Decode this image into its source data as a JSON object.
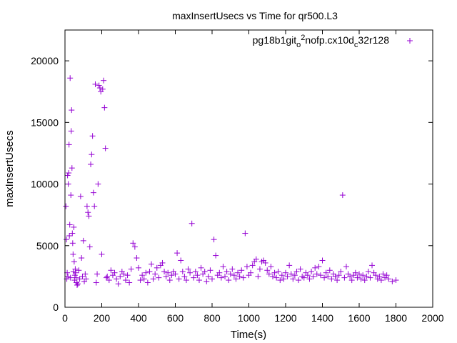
{
  "chart_data": {
    "type": "scatter",
    "title": "maxInsertUsecs vs Time for qr500.L3",
    "xlabel": "Time(s)",
    "ylabel": "maxInsertUsecs",
    "xlim": [
      0,
      2000
    ],
    "ylim": [
      0,
      22500
    ],
    "xticks": [
      0,
      200,
      400,
      600,
      800,
      1000,
      1200,
      1400,
      1600,
      1800,
      2000
    ],
    "yticks": [
      0,
      5000,
      10000,
      15000,
      20000
    ],
    "xtick_labels": [
      "0",
      "200",
      "400",
      "600",
      "800",
      "1000",
      "1200",
      "1400",
      "1600",
      "1800",
      "2000"
    ],
    "ytick_labels": [
      "0",
      "5000",
      "10000",
      "15000",
      "20000"
    ],
    "grid": false,
    "legend_position": "top-right",
    "marker": "+",
    "series": [
      {
        "name": "pg18b1git",
        "name_sub1": "o",
        "name_sup": "2",
        "name_mid": "nofp.cx10d",
        "name_sub2": "c",
        "name_tail": "32r128",
        "color": "#9400d3",
        "points": [
          [
            5,
            8200
          ],
          [
            8,
            5500
          ],
          [
            10,
            2300
          ],
          [
            12,
            2800
          ],
          [
            14,
            10700
          ],
          [
            16,
            2500
          ],
          [
            18,
            10000
          ],
          [
            20,
            10900
          ],
          [
            22,
            13200
          ],
          [
            24,
            5800
          ],
          [
            26,
            6700
          ],
          [
            28,
            18600
          ],
          [
            30,
            2400
          ],
          [
            32,
            9100
          ],
          [
            34,
            14300
          ],
          [
            36,
            16000
          ],
          [
            38,
            11300
          ],
          [
            40,
            6000
          ],
          [
            42,
            5200
          ],
          [
            44,
            4300
          ],
          [
            46,
            2900
          ],
          [
            48,
            6500
          ],
          [
            50,
            3700
          ],
          [
            52,
            2200
          ],
          [
            54,
            2600
          ],
          [
            56,
            3100
          ],
          [
            58,
            2800
          ],
          [
            60,
            2400
          ],
          [
            62,
            2000
          ],
          [
            66,
            1800
          ],
          [
            70,
            1900
          ],
          [
            75,
            3000
          ],
          [
            80,
            2300
          ],
          [
            85,
            9000
          ],
          [
            90,
            4000
          ],
          [
            95,
            2500
          ],
          [
            100,
            5400
          ],
          [
            105,
            2100
          ],
          [
            110,
            2700
          ],
          [
            115,
            2300
          ],
          [
            120,
            8200
          ],
          [
            125,
            7700
          ],
          [
            130,
            7400
          ],
          [
            135,
            4900
          ],
          [
            140,
            11600
          ],
          [
            145,
            12400
          ],
          [
            150,
            13900
          ],
          [
            155,
            9300
          ],
          [
            160,
            8200
          ],
          [
            165,
            18100
          ],
          [
            170,
            2000
          ],
          [
            175,
            2700
          ],
          [
            180,
            10000
          ],
          [
            185,
            18000
          ],
          [
            190,
            17800
          ],
          [
            195,
            17500
          ],
          [
            200,
            4300
          ],
          [
            205,
            17700
          ],
          [
            210,
            18400
          ],
          [
            215,
            16200
          ],
          [
            220,
            12900
          ],
          [
            225,
            2400
          ],
          [
            230,
            2500
          ],
          [
            240,
            2200
          ],
          [
            250,
            3000
          ],
          [
            260,
            2600
          ],
          [
            270,
            2800
          ],
          [
            280,
            2300
          ],
          [
            290,
            1900
          ],
          [
            300,
            2500
          ],
          [
            310,
            2900
          ],
          [
            320,
            2700
          ],
          [
            330,
            2200
          ],
          [
            340,
            2600
          ],
          [
            350,
            2000
          ],
          [
            360,
            3100
          ],
          [
            370,
            5200
          ],
          [
            380,
            4900
          ],
          [
            390,
            4000
          ],
          [
            400,
            3200
          ],
          [
            410,
            2200
          ],
          [
            420,
            2600
          ],
          [
            430,
            2300
          ],
          [
            440,
            2800
          ],
          [
            450,
            2000
          ],
          [
            460,
            2900
          ],
          [
            470,
            3500
          ],
          [
            480,
            2300
          ],
          [
            490,
            2700
          ],
          [
            500,
            3200
          ],
          [
            510,
            2400
          ],
          [
            520,
            3400
          ],
          [
            530,
            3600
          ],
          [
            540,
            2900
          ],
          [
            550,
            2500
          ],
          [
            560,
            2800
          ],
          [
            570,
            2200
          ],
          [
            580,
            2600
          ],
          [
            590,
            2900
          ],
          [
            600,
            2700
          ],
          [
            610,
            4400
          ],
          [
            620,
            2300
          ],
          [
            630,
            3800
          ],
          [
            640,
            2900
          ],
          [
            650,
            2500
          ],
          [
            660,
            2200
          ],
          [
            670,
            3100
          ],
          [
            680,
            2800
          ],
          [
            690,
            6800
          ],
          [
            700,
            2400
          ],
          [
            710,
            2900
          ],
          [
            720,
            2600
          ],
          [
            730,
            2200
          ],
          [
            740,
            3200
          ],
          [
            750,
            2700
          ],
          [
            760,
            2900
          ],
          [
            770,
            2100
          ],
          [
            780,
            2500
          ],
          [
            790,
            3000
          ],
          [
            800,
            2300
          ],
          [
            810,
            5500
          ],
          [
            820,
            4200
          ],
          [
            830,
            2600
          ],
          [
            840,
            2800
          ],
          [
            850,
            2400
          ],
          [
            860,
            3300
          ],
          [
            870,
            2500
          ],
          [
            880,
            2900
          ],
          [
            890,
            2200
          ],
          [
            900,
            2700
          ],
          [
            910,
            3100
          ],
          [
            920,
            2600
          ],
          [
            930,
            2300
          ],
          [
            940,
            2800
          ],
          [
            950,
            2500
          ],
          [
            960,
            3000
          ],
          [
            970,
            2400
          ],
          [
            980,
            6000
          ],
          [
            990,
            3300
          ],
          [
            1000,
            2600
          ],
          [
            1010,
            2800
          ],
          [
            1020,
            3400
          ],
          [
            1030,
            3700
          ],
          [
            1040,
            3900
          ],
          [
            1050,
            2500
          ],
          [
            1060,
            3100
          ],
          [
            1070,
            3700
          ],
          [
            1080,
            3800
          ],
          [
            1090,
            3600
          ],
          [
            1100,
            3000
          ],
          [
            1110,
            2700
          ],
          [
            1120,
            3300
          ],
          [
            1130,
            2500
          ],
          [
            1140,
            2800
          ],
          [
            1150,
            2400
          ],
          [
            1160,
            2900
          ],
          [
            1170,
            2200
          ],
          [
            1180,
            2600
          ],
          [
            1190,
            2300
          ],
          [
            1200,
            2800
          ],
          [
            1210,
            2500
          ],
          [
            1220,
            3400
          ],
          [
            1230,
            2700
          ],
          [
            1240,
            2300
          ],
          [
            1250,
            2600
          ],
          [
            1260,
            2900
          ],
          [
            1270,
            2200
          ],
          [
            1280,
            3100
          ],
          [
            1290,
            2500
          ],
          [
            1300,
            2400
          ],
          [
            1310,
            2800
          ],
          [
            1320,
            2600
          ],
          [
            1330,
            2300
          ],
          [
            1340,
            2900
          ],
          [
            1350,
            2500
          ],
          [
            1360,
            3200
          ],
          [
            1370,
            2700
          ],
          [
            1380,
            3300
          ],
          [
            1390,
            2600
          ],
          [
            1400,
            3800
          ],
          [
            1410,
            2400
          ],
          [
            1420,
            2800
          ],
          [
            1430,
            2500
          ],
          [
            1440,
            3000
          ],
          [
            1450,
            2300
          ],
          [
            1460,
            2700
          ],
          [
            1470,
            2500
          ],
          [
            1480,
            2200
          ],
          [
            1490,
            2600
          ],
          [
            1500,
            2900
          ],
          [
            1510,
            9100
          ],
          [
            1520,
            2400
          ],
          [
            1530,
            3300
          ],
          [
            1540,
            2700
          ],
          [
            1550,
            2500
          ],
          [
            1560,
            2200
          ],
          [
            1570,
            2600
          ],
          [
            1580,
            2800
          ],
          [
            1590,
            2400
          ],
          [
            1600,
            2700
          ],
          [
            1610,
            2300
          ],
          [
            1620,
            2600
          ],
          [
            1630,
            2200
          ],
          [
            1640,
            2500
          ],
          [
            1650,
            2900
          ],
          [
            1660,
            2400
          ],
          [
            1670,
            3400
          ],
          [
            1680,
            2800
          ],
          [
            1690,
            2600
          ],
          [
            1700,
            2300
          ],
          [
            1710,
            2500
          ],
          [
            1720,
            2200
          ],
          [
            1730,
            2700
          ],
          [
            1740,
            2400
          ],
          [
            1750,
            2600
          ],
          [
            1760,
            2300
          ],
          [
            1780,
            2100
          ],
          [
            1800,
            2200
          ]
        ]
      }
    ]
  }
}
